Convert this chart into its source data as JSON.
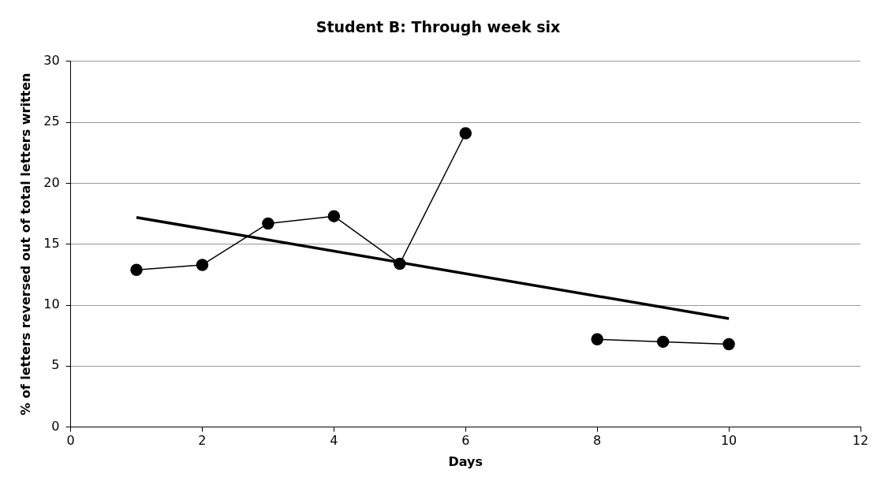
{
  "chart_data": {
    "type": "line",
    "title": "Student B: Through week six",
    "xlabel": "Days",
    "ylabel": "% of letters reversed out of total letters written",
    "x": [
      1,
      2,
      3,
      4,
      5,
      6,
      7,
      8,
      9,
      10
    ],
    "series": [
      {
        "color": "#000000",
        "values": [
          12.9,
          13.3,
          16.7,
          17.3,
          13.4,
          24.1,
          null,
          7.2,
          7.0,
          6.8
        ],
        "marker": "circle"
      },
      {
        "type": "line",
        "x": [
          1,
          10
        ],
        "color": "#000000",
        "values": [
          17.2,
          8.9
        ],
        "marker": "none"
      }
    ],
    "xlim": [
      0,
      12
    ],
    "xticks": [
      0,
      2,
      4,
      6,
      8,
      10,
      12
    ],
    "ylim": [
      0,
      30
    ],
    "yticks": [
      0,
      5,
      10,
      15,
      20,
      25,
      30
    ],
    "grid": "y",
    "legend": false,
    "line_style": "solid"
  }
}
